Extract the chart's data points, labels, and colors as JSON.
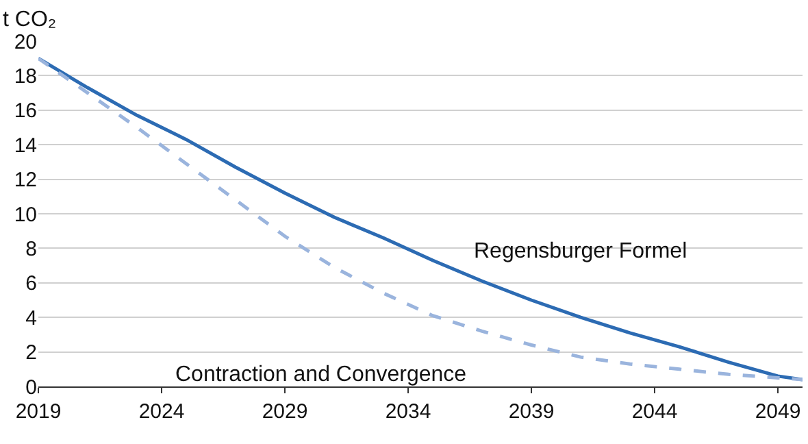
{
  "chart_data": {
    "type": "line",
    "ylabel": "t CO₂",
    "xlim": [
      2019,
      2050
    ],
    "xticks": [
      2019,
      2024,
      2029,
      2034,
      2039,
      2044,
      2049
    ],
    "ylim": [
      0,
      20
    ],
    "yticks": [
      0,
      2,
      4,
      6,
      8,
      10,
      12,
      14,
      16,
      18,
      20
    ],
    "grid": "y",
    "legend": false,
    "marker": "none",
    "series": [
      {
        "name": "Regensburger Formel",
        "color": "#2c6bb3",
        "line_style": "solid",
        "x": [
          2019,
          2021,
          2023,
          2025,
          2027,
          2029,
          2031,
          2033,
          2035,
          2037,
          2039,
          2041,
          2043,
          2045,
          2047,
          2049,
          2050
        ],
        "values": [
          19.0,
          17.3,
          15.7,
          14.3,
          12.7,
          11.2,
          9.8,
          8.6,
          7.3,
          6.1,
          5.0,
          4.0,
          3.1,
          2.3,
          1.4,
          0.6,
          0.4
        ]
      },
      {
        "name": "Contraction and Convergence",
        "color": "#9ab4dd",
        "line_style": "dashed",
        "x": [
          2019,
          2021,
          2023,
          2025,
          2027,
          2029,
          2031,
          2033,
          2035,
          2037,
          2039,
          2041,
          2043,
          2045,
          2047,
          2049,
          2050
        ],
        "values": [
          19.0,
          17.0,
          15.0,
          12.9,
          10.8,
          8.7,
          6.9,
          5.4,
          4.1,
          3.2,
          2.4,
          1.7,
          1.3,
          1.0,
          0.7,
          0.5,
          0.4
        ]
      }
    ]
  }
}
